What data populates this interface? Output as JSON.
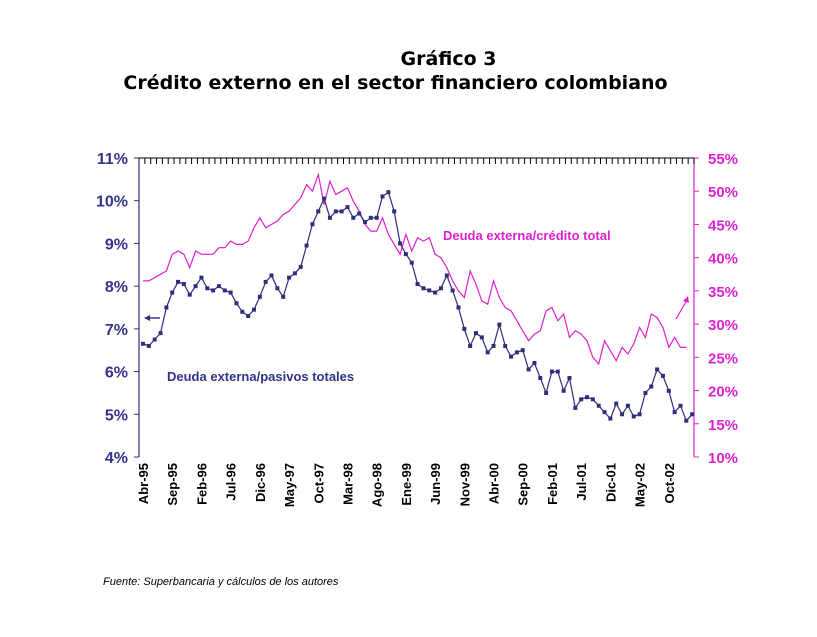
{
  "header": {
    "figure_number": "Gráfico 3",
    "title": "Crédito externo en el sector financiero colombiano"
  },
  "source_note": "Fuente: Superbancaria y cálculos de los autores",
  "colors": {
    "left_series": "#2e2e7a",
    "right_series": "#e020d0",
    "left_axis_text": "#33338a",
    "right_axis_text": "#e020d0"
  },
  "chart_data": {
    "type": "line",
    "title": "Crédito externo en el sector financiero colombiano",
    "xlabel": "",
    "ylabel_left": "",
    "ylabel_right": "",
    "x_start": "Abr-95",
    "x_tick_labels": [
      "Abr-95",
      "Sep-95",
      "Feb-96",
      "Jul-96",
      "Dic-96",
      "May-97",
      "Oct-97",
      "Mar-98",
      "Ago-98",
      "Ene-99",
      "Jun-99",
      "Nov-99",
      "Abr-00",
      "Sep-00",
      "Feb-01",
      "Jul-01",
      "Dic-01",
      "May-02",
      "Oct-02"
    ],
    "x_tick_every_months": 5,
    "y_left": {
      "range": [
        4,
        11
      ],
      "ticks": [
        "4%",
        "5%",
        "6%",
        "7%",
        "8%",
        "9%",
        "10%",
        "11%"
      ]
    },
    "y_right": {
      "range": [
        10,
        55
      ],
      "ticks": [
        "10%",
        "15%",
        "20%",
        "25%",
        "30%",
        "35%",
        "40%",
        "45%",
        "50%",
        "55%"
      ]
    },
    "grid": false,
    "series": [
      {
        "name": "Deuda externa/pasivos totales",
        "axis": "left",
        "marker": "square",
        "values": [
          6.65,
          6.6,
          6.75,
          6.9,
          7.5,
          7.85,
          8.1,
          8.05,
          7.8,
          8.0,
          8.2,
          7.95,
          7.9,
          8.0,
          7.9,
          7.85,
          7.6,
          7.4,
          7.3,
          7.45,
          7.75,
          8.1,
          8.25,
          7.95,
          7.75,
          8.2,
          8.3,
          8.45,
          8.95,
          9.45,
          9.75,
          10.05,
          9.6,
          9.75,
          9.75,
          9.85,
          9.6,
          9.7,
          9.5,
          9.6,
          9.6,
          10.1,
          10.2,
          9.75,
          9.0,
          8.75,
          8.55,
          8.05,
          7.95,
          7.9,
          7.85,
          7.95,
          8.25,
          7.9,
          7.5,
          7.0,
          6.6,
          6.9,
          6.8,
          6.45,
          6.6,
          7.1,
          6.6,
          6.35,
          6.45,
          6.5,
          6.05,
          6.2,
          5.85,
          5.5,
          6.0,
          6.0,
          5.55,
          5.85,
          5.15,
          5.35,
          5.4,
          5.35,
          5.2,
          5.05,
          4.9,
          5.25,
          5.0,
          5.2,
          4.95,
          5.0,
          5.5,
          5.65,
          6.05,
          5.9,
          5.55,
          5.05,
          5.2,
          4.85,
          5.0
        ]
      },
      {
        "name": "Deuda externa/crédito total",
        "axis": "right",
        "marker": "none",
        "values": [
          36.5,
          36.5,
          37.0,
          37.5,
          38.0,
          40.5,
          41.0,
          40.5,
          38.5,
          41.0,
          40.5,
          40.5,
          40.5,
          41.5,
          41.5,
          42.5,
          42.0,
          42.0,
          42.5,
          44.5,
          46.0,
          44.5,
          45.0,
          45.5,
          46.5,
          47.0,
          48.0,
          49.0,
          51.0,
          50.0,
          52.5,
          48.0,
          51.5,
          49.5,
          50.0,
          50.5,
          48.5,
          47.0,
          45.0,
          44.0,
          44.0,
          46.0,
          43.5,
          42.0,
          40.5,
          43.5,
          41.0,
          43.0,
          42.5,
          43.0,
          40.5,
          40.0,
          38.5,
          36.5,
          35.0,
          34.0,
          38.0,
          36.0,
          33.5,
          33.0,
          36.5,
          34.0,
          32.5,
          32.0,
          30.5,
          29.0,
          27.5,
          28.5,
          29.0,
          32.0,
          32.5,
          30.5,
          31.5,
          28.0,
          29.0,
          28.5,
          27.5,
          25.0,
          24.0,
          27.5,
          26.0,
          24.5,
          26.5,
          25.5,
          27.0,
          29.5,
          28.0,
          31.5,
          31.0,
          29.5,
          26.5,
          28.0,
          26.5,
          26.5
        ]
      }
    ],
    "annotations": [
      {
        "text": "Deuda externa/pasivos totales",
        "series": "Deuda externa/pasivos totales",
        "arrow": "points to left axis"
      },
      {
        "text": "Deuda externa/crédito total",
        "series": "Deuda externa/crédito total",
        "arrow": "points to right axis"
      }
    ]
  }
}
